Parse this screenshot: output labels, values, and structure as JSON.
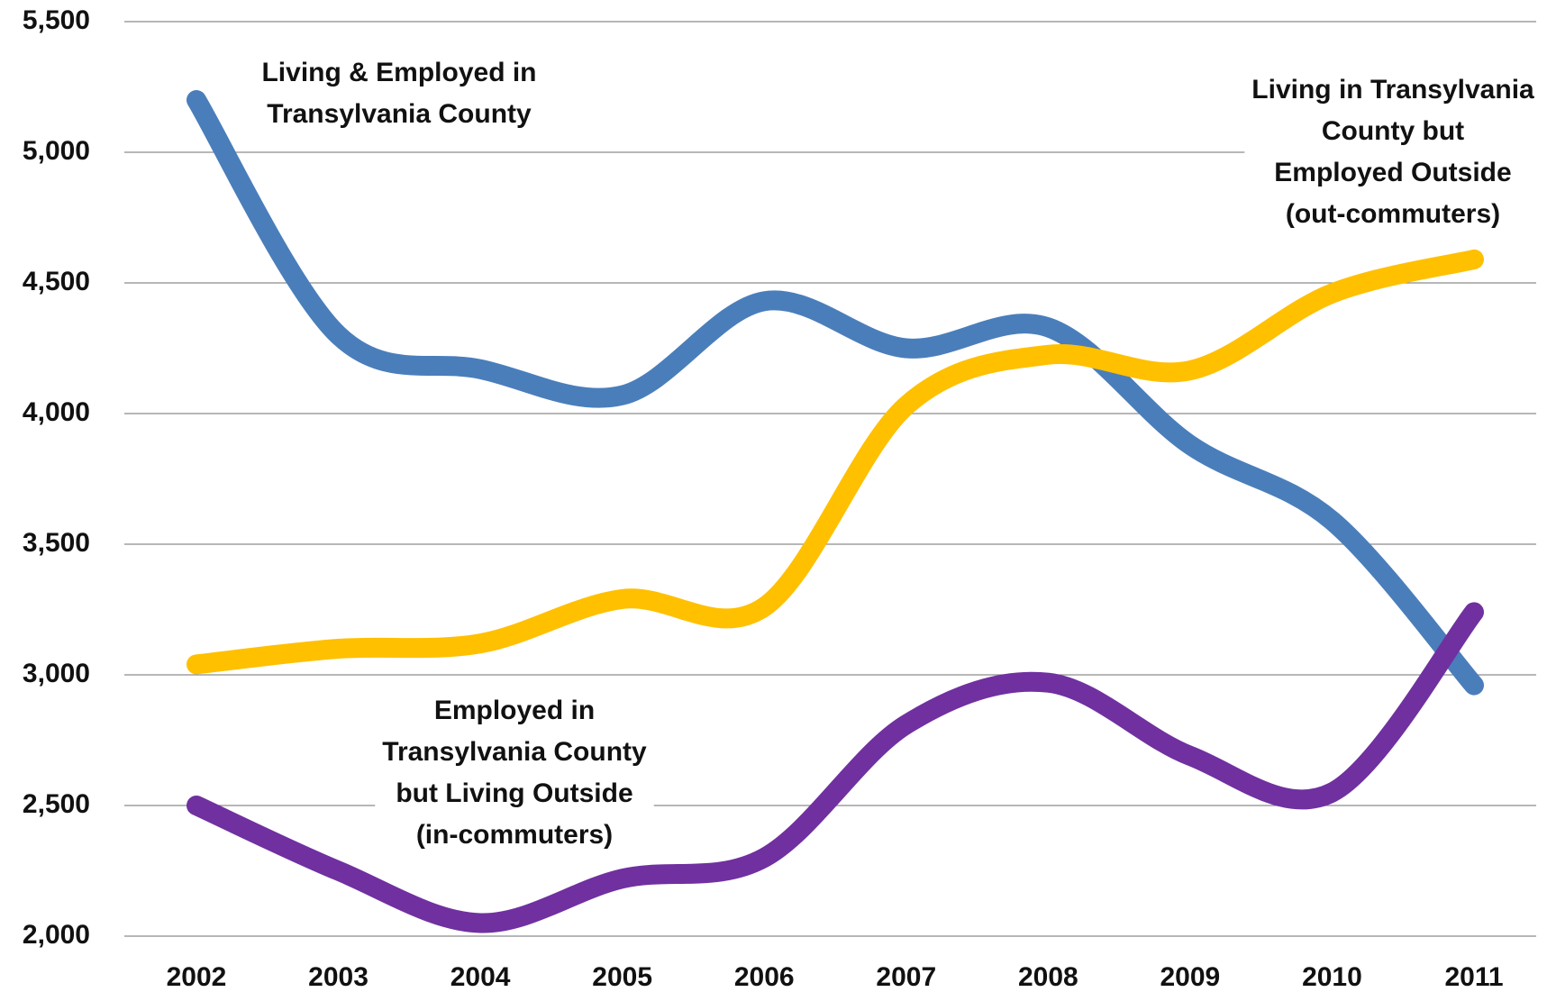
{
  "chart_data": {
    "type": "line",
    "categories": [
      "2002",
      "2003",
      "2004",
      "2005",
      "2006",
      "2007",
      "2008",
      "2009",
      "2010",
      "2011"
    ],
    "series": [
      {
        "name": "Living & Employed in Transylvania County",
        "color": "#4a7ebb",
        "values": [
          5200,
          4300,
          4170,
          4070,
          4430,
          4250,
          4330,
          3880,
          3590,
          2960
        ]
      },
      {
        "name": "Living in Transylvania County but Employed Outside (out-commuters)",
        "color": "#ffc000",
        "values": [
          3040,
          3100,
          3120,
          3290,
          3260,
          4030,
          4225,
          4165,
          4460,
          4590
        ]
      },
      {
        "name": "Employed in Transylvania County but Living Outside (in-commuters)",
        "color": "#7030a0",
        "values": [
          2500,
          2250,
          2050,
          2220,
          2300,
          2810,
          2970,
          2690,
          2550,
          3240
        ]
      }
    ],
    "annotations": [
      [
        "Living & Employed in",
        "Transylvania County"
      ],
      [
        "Living in Transylvania",
        "County but",
        "Employed Outside",
        "(out-commuters)"
      ],
      [
        "Employed in",
        "Transylvania County",
        "but Living Outside",
        "(in-commuters)"
      ]
    ],
    "ylim": [
      2000,
      5500
    ],
    "yticks": [
      {
        "value": 2000,
        "label": "2,000"
      },
      {
        "value": 2500,
        "label": "2,500"
      },
      {
        "value": 3000,
        "label": "3,000"
      },
      {
        "value": 3500,
        "label": "3,500"
      },
      {
        "value": 4000,
        "label": "4,000"
      },
      {
        "value": 4500,
        "label": "4,500"
      },
      {
        "value": 5000,
        "label": "5,000"
      },
      {
        "value": 5500,
        "label": "5,500"
      }
    ],
    "grid": true
  }
}
